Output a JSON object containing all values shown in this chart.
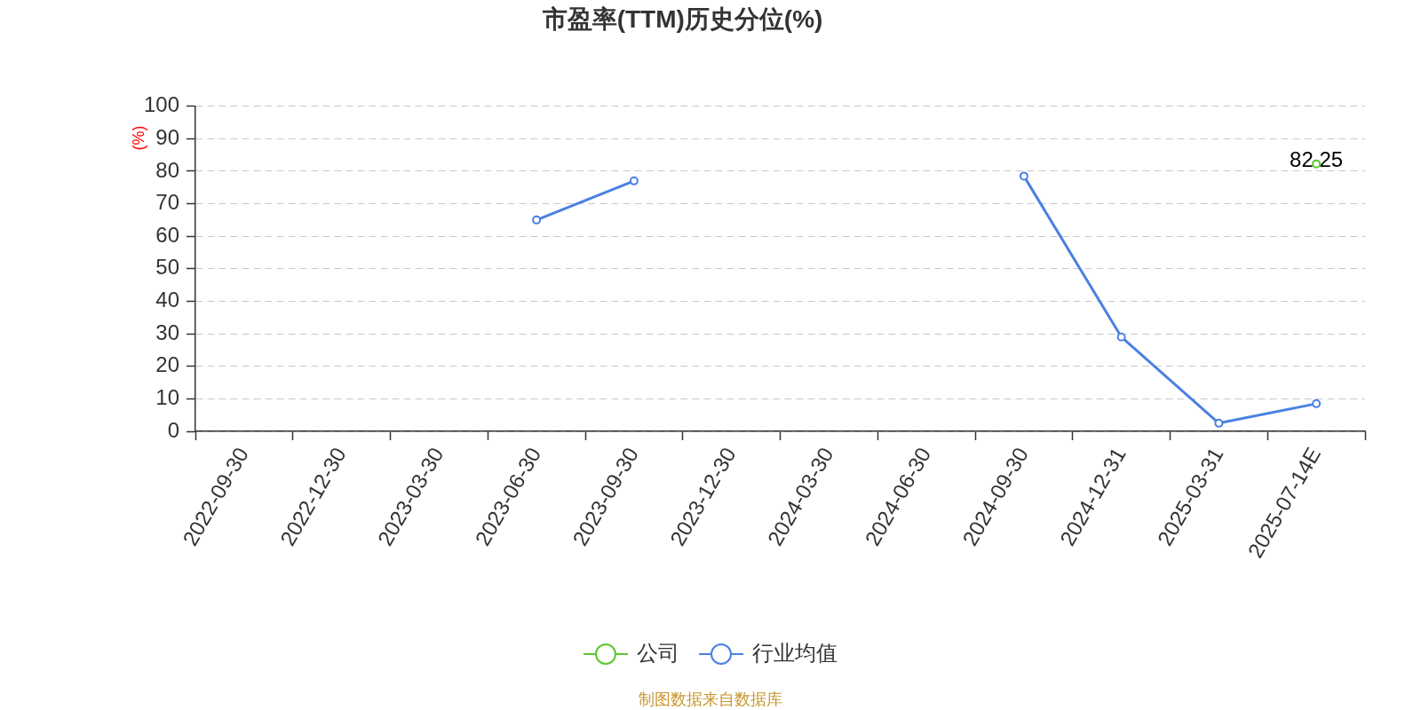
{
  "chart_data": {
    "type": "line",
    "title": "市盈率(TTM)历史分位(%)",
    "ylabel": "(%)",
    "categories": [
      "2022-09-30",
      "2022-12-30",
      "2023-03-30",
      "2023-06-30",
      "2023-09-30",
      "2023-12-30",
      "2024-03-30",
      "2024-06-30",
      "2024-09-30",
      "2024-12-31",
      "2025-03-31",
      "2025-07-14E"
    ],
    "series": [
      {
        "name": "公司",
        "color": "#5ac72e",
        "values": [
          null,
          null,
          null,
          null,
          null,
          null,
          null,
          null,
          null,
          null,
          null,
          82.25
        ],
        "value_labels": [
          null,
          null,
          null,
          null,
          null,
          null,
          null,
          null,
          null,
          null,
          null,
          "82.25"
        ]
      },
      {
        "name": "行业均值",
        "color": "#4a80e3",
        "values": [
          null,
          null,
          null,
          65,
          77,
          null,
          null,
          null,
          78.5,
          29,
          2.5,
          8.5
        ]
      }
    ],
    "ylim": [
      0,
      100
    ],
    "yticks": [
      0,
      10,
      20,
      30,
      40,
      50,
      60,
      70,
      80,
      90,
      100
    ],
    "grid": "y",
    "legend": "bottom",
    "marker": "circle",
    "line_style": "solid",
    "annotations": [
      "制图数据来自数据库"
    ]
  }
}
